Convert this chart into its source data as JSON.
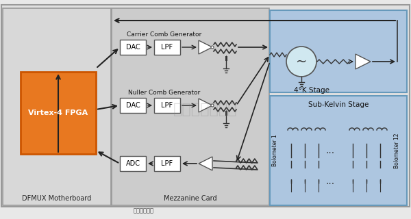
{
  "fig_width": 6.0,
  "fig_height": 3.2,
  "dpi": 100,
  "bg_color": "#e8e8e8",
  "motherboard_bg": "#d0d0d0",
  "mezzanine_bg": "#c8c8c8",
  "subkelvin_bg": "#a8c8e8",
  "fourk_bg": "#a8c8e8",
  "fpga_color": "#e87820",
  "box_color": "#ffffff",
  "title_motherboard": "DFMUX Motherboard",
  "title_mezzanine": "Mezzanine Card",
  "title_subkelvin": "Sub-Kelvin Stage",
  "title_fourk": "4°K Stage",
  "label_fpga": "Virtex-4 FPGA",
  "label_carrier": "Carrier Comb Generator",
  "label_nuller": "Nuller Comb Generator",
  "label_dac1": "DAC",
  "label_lpf1": "LPF",
  "label_dac2": "DAC",
  "label_lpf2": "LPF",
  "label_adc": "ADC",
  "label_lpf3": "LPF",
  "label_bolometer1": "Bolometer 1",
  "label_bolometer12": "Bolometer 12",
  "label_room_temp": "室温电子设备",
  "arrow_color": "#222222",
  "border_color": "#888888"
}
